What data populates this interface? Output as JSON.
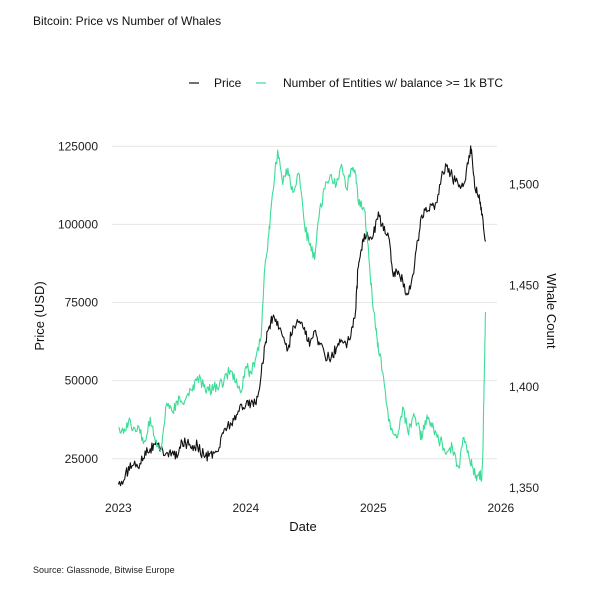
{
  "chart_data": {
    "type": "line",
    "title": "Bitcoin: Price vs Number of Whales",
    "xlabel": "Date",
    "ylabel": "Price (USD)",
    "y2label": "Whale Count",
    "source": "Source: Glassnode, Bitwise Europe",
    "legend_position": "top",
    "grid": "horizontal",
    "xlim": [
      2022.95,
      2025.97
    ],
    "ylim": [
      15000,
      127000
    ],
    "y2lim": [
      1349,
      1522
    ],
    "x_ticks": [
      2023,
      2024,
      2025,
      2026
    ],
    "x_tick_labels": [
      "2023",
      "2024",
      "2025",
      "2026"
    ],
    "y_ticks": [
      25000,
      50000,
      75000,
      100000,
      125000
    ],
    "y_tick_labels": [
      "25000",
      "50000",
      "75000",
      "100000",
      "125000"
    ],
    "y2_ticks": [
      1350,
      1400,
      1450,
      1500
    ],
    "y2_tick_labels": [
      "1,350",
      "1,400",
      "1,450",
      "1,500"
    ],
    "colors": {
      "price": "#111111",
      "whales": "#3ddc97"
    },
    "series": [
      {
        "name": "Price",
        "axis": "left",
        "x": [
          2023.0,
          2023.05,
          2023.08,
          2023.12,
          2023.17,
          2023.21,
          2023.25,
          2023.29,
          2023.33,
          2023.38,
          2023.42,
          2023.46,
          2023.5,
          2023.54,
          2023.58,
          2023.62,
          2023.67,
          2023.71,
          2023.75,
          2023.79,
          2023.83,
          2023.88,
          2023.92,
          2023.96,
          2024.0,
          2024.04,
          2024.08,
          2024.12,
          2024.15,
          2024.18,
          2024.21,
          2024.25,
          2024.29,
          2024.33,
          2024.37,
          2024.42,
          2024.46,
          2024.5,
          2024.54,
          2024.58,
          2024.62,
          2024.67,
          2024.71,
          2024.75,
          2024.79,
          2024.83,
          2024.86,
          2024.88,
          2024.9,
          2024.93,
          2024.96,
          2025.0,
          2025.04,
          2025.08,
          2025.12,
          2025.15,
          2025.19,
          2025.23,
          2025.27,
          2025.31,
          2025.35,
          2025.38,
          2025.42,
          2025.46,
          2025.5,
          2025.54,
          2025.58,
          2025.62,
          2025.67,
          2025.71,
          2025.75,
          2025.77,
          2025.8,
          2025.83,
          2025.85,
          2025.88
        ],
        "values": [
          16800,
          18500,
          22500,
          23000,
          23500,
          27500,
          28200,
          29500,
          28000,
          27000,
          26800,
          25300,
          30500,
          30000,
          29200,
          29300,
          26000,
          25800,
          26800,
          28500,
          34500,
          36500,
          37500,
          42500,
          42300,
          43000,
          42300,
          52000,
          61500,
          67000,
          70000,
          69000,
          64000,
          60000,
          67500,
          69000,
          67000,
          61000,
          66000,
          61500,
          58000,
          57500,
          60500,
          63000,
          60500,
          67000,
          72000,
          86000,
          91000,
          97000,
          96000,
          96500,
          104000,
          98000,
          96000,
          85000,
          84000,
          82000,
          77500,
          84000,
          95000,
          103000,
          104000,
          106000,
          107000,
          117000,
          119000,
          115000,
          112000,
          113000,
          122000,
          124000,
          111000,
          109500,
          103000,
          94500
        ]
      },
      {
        "name": "Number of Entities w/ balance >= 1k BTC",
        "axis": "right",
        "x": [
          2023.0,
          2023.04,
          2023.08,
          2023.12,
          2023.17,
          2023.21,
          2023.25,
          2023.29,
          2023.33,
          2023.38,
          2023.42,
          2023.46,
          2023.5,
          2023.54,
          2023.58,
          2023.62,
          2023.67,
          2023.71,
          2023.75,
          2023.79,
          2023.83,
          2023.88,
          2023.92,
          2023.96,
          2024.0,
          2024.04,
          2024.08,
          2024.12,
          2024.15,
          2024.18,
          2024.2,
          2024.25,
          2024.29,
          2024.33,
          2024.37,
          2024.42,
          2024.46,
          2024.5,
          2024.54,
          2024.58,
          2024.62,
          2024.67,
          2024.71,
          2024.75,
          2024.79,
          2024.83,
          2024.86,
          2024.88,
          2024.9,
          2024.93,
          2024.96,
          2024.99,
          2025.02,
          2025.04,
          2025.08,
          2025.12,
          2025.15,
          2025.19,
          2025.23,
          2025.27,
          2025.31,
          2025.35,
          2025.38,
          2025.42,
          2025.46,
          2025.5,
          2025.54,
          2025.58,
          2025.62,
          2025.67,
          2025.71,
          2025.75,
          2025.78,
          2025.8,
          2025.83,
          2025.85,
          2025.86,
          2025.87,
          2025.88
        ],
        "values": [
          1380,
          1377,
          1383,
          1380,
          1377,
          1373,
          1385,
          1373,
          1368,
          1392,
          1388,
          1393,
          1392,
          1396,
          1398,
          1405,
          1400,
          1398,
          1400,
          1400,
          1404,
          1408,
          1402,
          1397,
          1410,
          1407,
          1415,
          1425,
          1460,
          1475,
          1490,
          1517,
          1500,
          1508,
          1496,
          1505,
          1480,
          1470,
          1463,
          1488,
          1498,
          1505,
          1500,
          1510,
          1498,
          1508,
          1505,
          1492,
          1490,
          1487,
          1470,
          1445,
          1428,
          1418,
          1405,
          1383,
          1378,
          1375,
          1390,
          1378,
          1385,
          1382,
          1374,
          1386,
          1380,
          1375,
          1372,
          1368,
          1370,
          1360,
          1375,
          1365,
          1360,
          1355,
          1358,
          1354,
          1370,
          1405,
          1437
        ]
      }
    ]
  }
}
